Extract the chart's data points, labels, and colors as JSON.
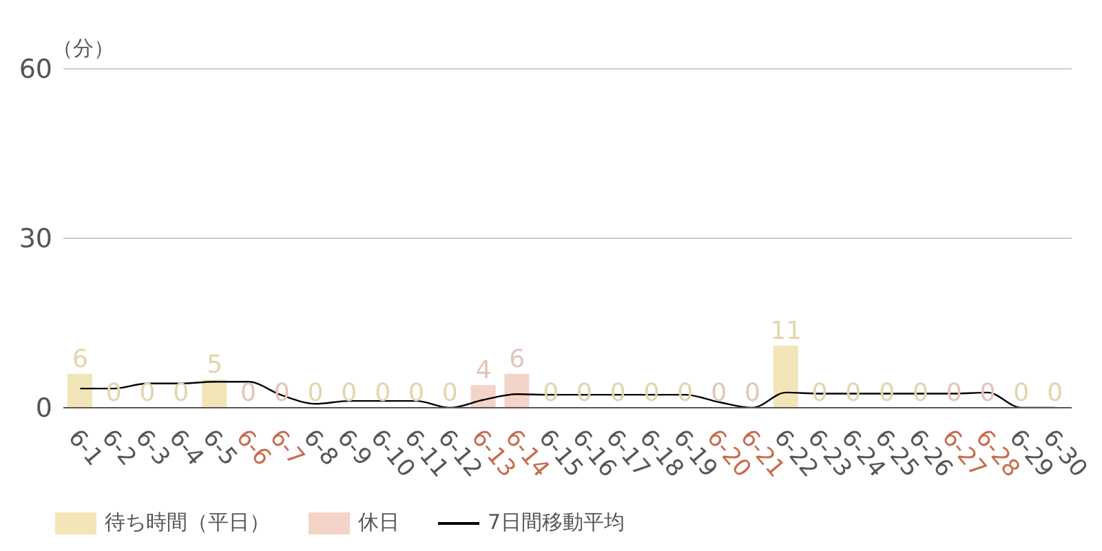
{
  "chart_data": {
    "type": "bar",
    "ylabel": "（分）",
    "categories": [
      "6-1",
      "6-2",
      "6-3",
      "6-4",
      "6-5",
      "6-6",
      "6-7",
      "6-8",
      "6-9",
      "6-10",
      "6-11",
      "6-12",
      "6-13",
      "6-14",
      "6-15",
      "6-16",
      "6-17",
      "6-18",
      "6-19",
      "6-20",
      "6-21",
      "6-22",
      "6-23",
      "6-24",
      "6-25",
      "6-26",
      "6-27",
      "6-28",
      "6-29",
      "6-30"
    ],
    "series": [
      {
        "name": "待ち時間（平日）",
        "color": "#f2e6b8",
        "values": [
          6,
          0,
          0,
          0,
          5,
          null,
          null,
          0,
          0,
          0,
          0,
          0,
          null,
          null,
          0,
          0,
          0,
          0,
          0,
          null,
          null,
          11,
          0,
          0,
          0,
          0,
          null,
          null,
          0,
          0
        ],
        "value_labels": [
          "6",
          "0",
          "0",
          "0",
          "5",
          null,
          null,
          "0",
          "0",
          "0",
          "0",
          "0",
          null,
          null,
          "0",
          "0",
          "0",
          "0",
          "0",
          null,
          null,
          "11",
          "0",
          "0",
          "0",
          "0",
          null,
          null,
          "0",
          "0"
        ]
      },
      {
        "name": "休日",
        "color": "#f4d3c8",
        "values": [
          null,
          null,
          null,
          null,
          null,
          0,
          0,
          null,
          null,
          null,
          null,
          null,
          4,
          6,
          null,
          null,
          null,
          null,
          null,
          0,
          0,
          null,
          null,
          null,
          null,
          null,
          0,
          0,
          null,
          null
        ],
        "value_labels": [
          null,
          null,
          null,
          null,
          null,
          "0",
          "0",
          null,
          null,
          null,
          null,
          null,
          "4",
          "6",
          null,
          null,
          null,
          null,
          null,
          "0",
          "0",
          null,
          null,
          null,
          null,
          null,
          "0",
          "0",
          null,
          null
        ]
      },
      {
        "name": "7日間移動平均",
        "type": "line",
        "color": "#000000",
        "values": [
          3.4,
          3.4,
          4.3,
          4.3,
          4.6,
          4.6,
          2.2,
          0.7,
          1.2,
          1.2,
          1.2,
          0,
          1.4,
          2.4,
          2.3,
          2.3,
          2.3,
          2.3,
          2.3,
          1,
          0,
          2.7,
          2.5,
          2.5,
          2.5,
          2.5,
          2.5,
          2.7,
          0,
          0
        ]
      }
    ],
    "stacked": true,
    "ylim": [
      0,
      60
    ],
    "yticks": [
      0,
      30,
      60
    ],
    "grid": "y",
    "legend": "bottom",
    "marker": "none",
    "line_style": "solid"
  }
}
